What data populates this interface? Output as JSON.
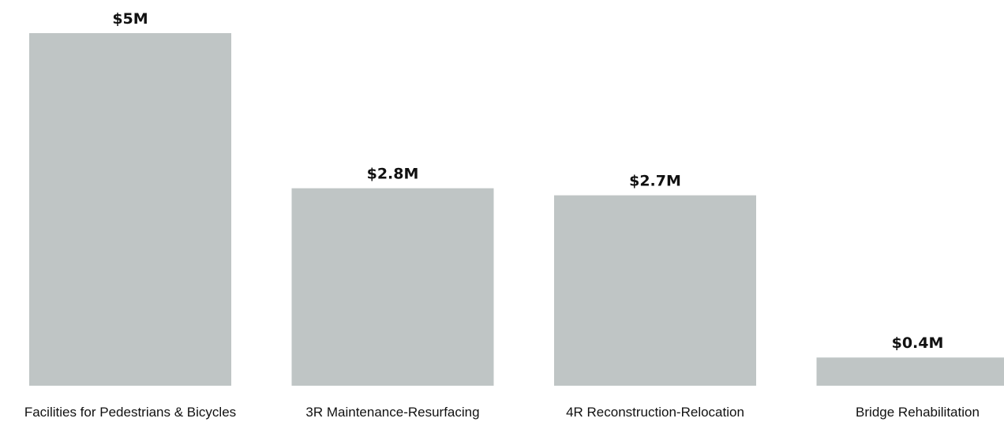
{
  "chart_data": {
    "type": "bar",
    "categories": [
      "Facilities for Pedestrians & Bicycles",
      "3R Maintenance-Resurfacing",
      "4R Reconstruction-Relocation",
      "Bridge Rehabilitation"
    ],
    "values": [
      5.0,
      2.8,
      2.7,
      0.4
    ],
    "data_labels": [
      "$5M",
      "$2.8M",
      "$2.7M",
      "$0.4M"
    ],
    "title": "",
    "xlabel": "",
    "ylabel": "",
    "ylim": [
      0,
      5
    ],
    "grid": false,
    "bar_color": "#bfc5c5",
    "text_color": "#111111"
  }
}
